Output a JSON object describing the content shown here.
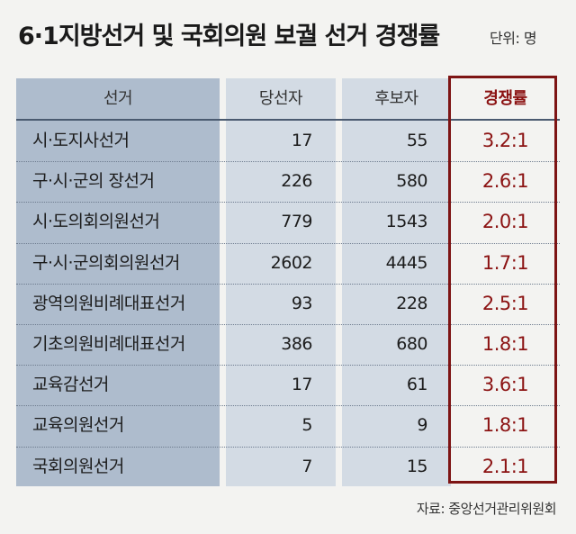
{
  "title": "6·1지방선거 및 국회의원 보궐 선거 경쟁률",
  "unit": "단위: 명",
  "source": "자료: 중앙선거관리위원회",
  "colors": {
    "ratio_accent": "#8b1212",
    "name_column": "#aebccd",
    "value_columns": "#d3dbe4"
  },
  "chart_data": {
    "type": "table",
    "columns": [
      "선거",
      "당선자",
      "후보자",
      "경쟁률"
    ],
    "rows": [
      [
        "시·도지사선거",
        "17",
        "55",
        "3.2:1"
      ],
      [
        "구·시·군의 장선거",
        "226",
        "580",
        "2.6:1"
      ],
      [
        "시·도의회의원선거",
        "779",
        "1543",
        "2.0:1"
      ],
      [
        "구·시·군의회의원선거",
        "2602",
        "4445",
        "1.7:1"
      ],
      [
        "광역의원비례대표선거",
        "93",
        "228",
        "2.5:1"
      ],
      [
        "기초의원비례대표선거",
        "386",
        "680",
        "1.8:1"
      ],
      [
        "교육감선거",
        "17",
        "61",
        "3.6:1"
      ],
      [
        "교육의원선거",
        "5",
        "9",
        "1.8:1"
      ],
      [
        "국회의원선거",
        "7",
        "15",
        "2.1:1"
      ]
    ]
  }
}
